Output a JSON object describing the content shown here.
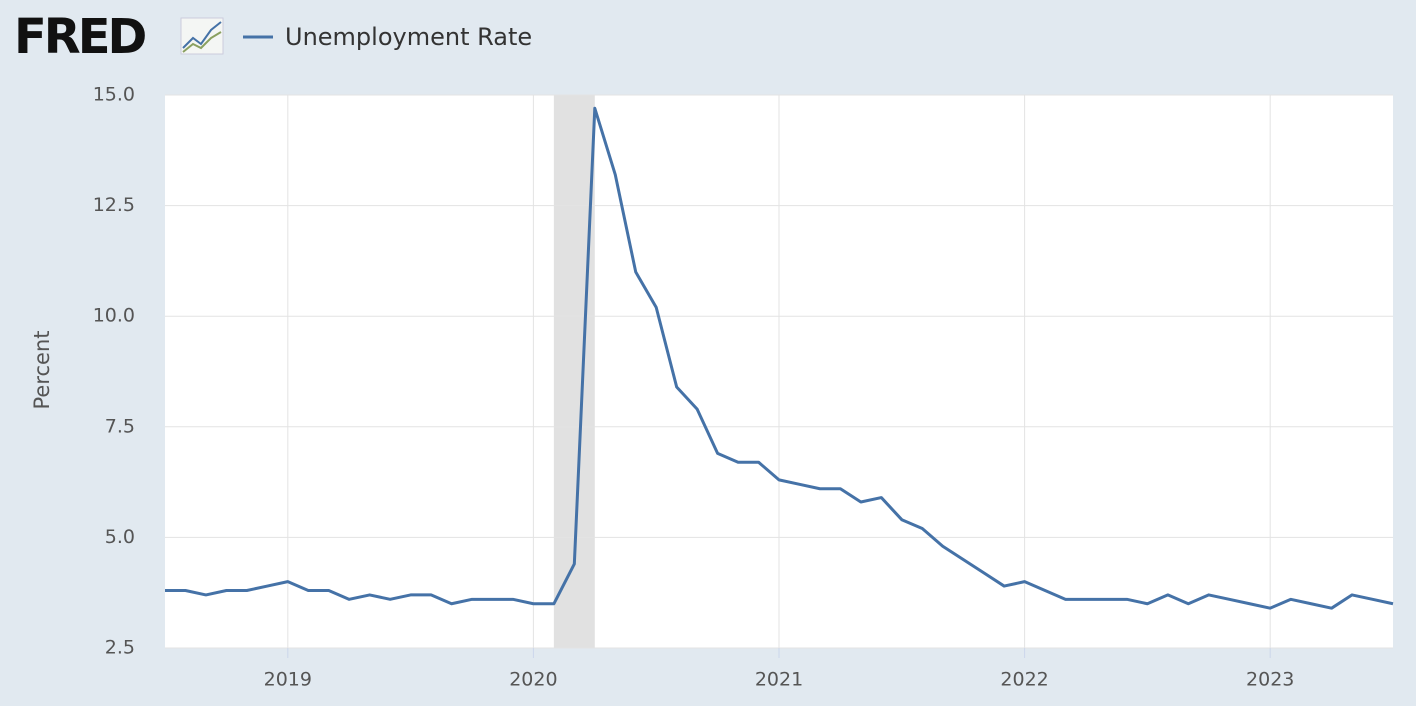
{
  "logo": "FRED",
  "chart_data": {
    "type": "line",
    "y_label": "Percent",
    "x": [
      "2018-07",
      "2018-08",
      "2018-09",
      "2018-10",
      "2018-11",
      "2018-12",
      "2019-01",
      "2019-02",
      "2019-03",
      "2019-04",
      "2019-05",
      "2019-06",
      "2019-07",
      "2019-08",
      "2019-09",
      "2019-10",
      "2019-11",
      "2019-12",
      "2020-01",
      "2020-02",
      "2020-03",
      "2020-04",
      "2020-05",
      "2020-06",
      "2020-07",
      "2020-08",
      "2020-09",
      "2020-10",
      "2020-11",
      "2020-12",
      "2021-01",
      "2021-02",
      "2021-03",
      "2021-04",
      "2021-05",
      "2021-06",
      "2021-07",
      "2021-08",
      "2021-09",
      "2021-10",
      "2021-11",
      "2021-12",
      "2022-01",
      "2022-02",
      "2022-03",
      "2022-04",
      "2022-05",
      "2022-06",
      "2022-07",
      "2022-08",
      "2022-09",
      "2022-10",
      "2022-11",
      "2022-12",
      "2023-01",
      "2023-02",
      "2023-03",
      "2023-04",
      "2023-05",
      "2023-06",
      "2023-07"
    ],
    "series": [
      {
        "name": "Unemployment Rate",
        "color": "#4572a7",
        "values": [
          3.8,
          3.8,
          3.7,
          3.8,
          3.8,
          3.9,
          4.0,
          3.8,
          3.8,
          3.6,
          3.7,
          3.6,
          3.7,
          3.7,
          3.5,
          3.6,
          3.6,
          3.6,
          3.5,
          3.5,
          4.4,
          14.7,
          13.2,
          11.0,
          10.2,
          8.4,
          7.9,
          6.9,
          6.7,
          6.7,
          6.3,
          6.2,
          6.1,
          6.1,
          5.8,
          5.9,
          5.4,
          5.2,
          4.8,
          4.5,
          4.2,
          3.9,
          4.0,
          3.8,
          3.6,
          3.6,
          3.6,
          3.6,
          3.5,
          3.7,
          3.5,
          3.7,
          3.6,
          3.5,
          3.4,
          3.6,
          3.5,
          3.4,
          3.7,
          3.6,
          3.5
        ]
      }
    ],
    "xlim": [
      "2018-07",
      "2023-07"
    ],
    "xticks": [
      {
        "value": "2019-01",
        "label": "2019"
      },
      {
        "value": "2020-01",
        "label": "2020"
      },
      {
        "value": "2021-01",
        "label": "2021"
      },
      {
        "value": "2022-01",
        "label": "2022"
      },
      {
        "value": "2023-01",
        "label": "2023"
      }
    ],
    "ylim": [
      2.5,
      15
    ],
    "yticks": [
      {
        "value": 2.5,
        "label": "2.5"
      },
      {
        "value": 5,
        "label": "5.0"
      },
      {
        "value": 7.5,
        "label": "7.5"
      },
      {
        "value": 10,
        "label": "10.0"
      },
      {
        "value": 12.5,
        "label": "12.5"
      },
      {
        "value": 15,
        "label": "15.0"
      }
    ],
    "recessions": [
      [
        "2020-02",
        "2020-04"
      ]
    ],
    "grid": true
  }
}
